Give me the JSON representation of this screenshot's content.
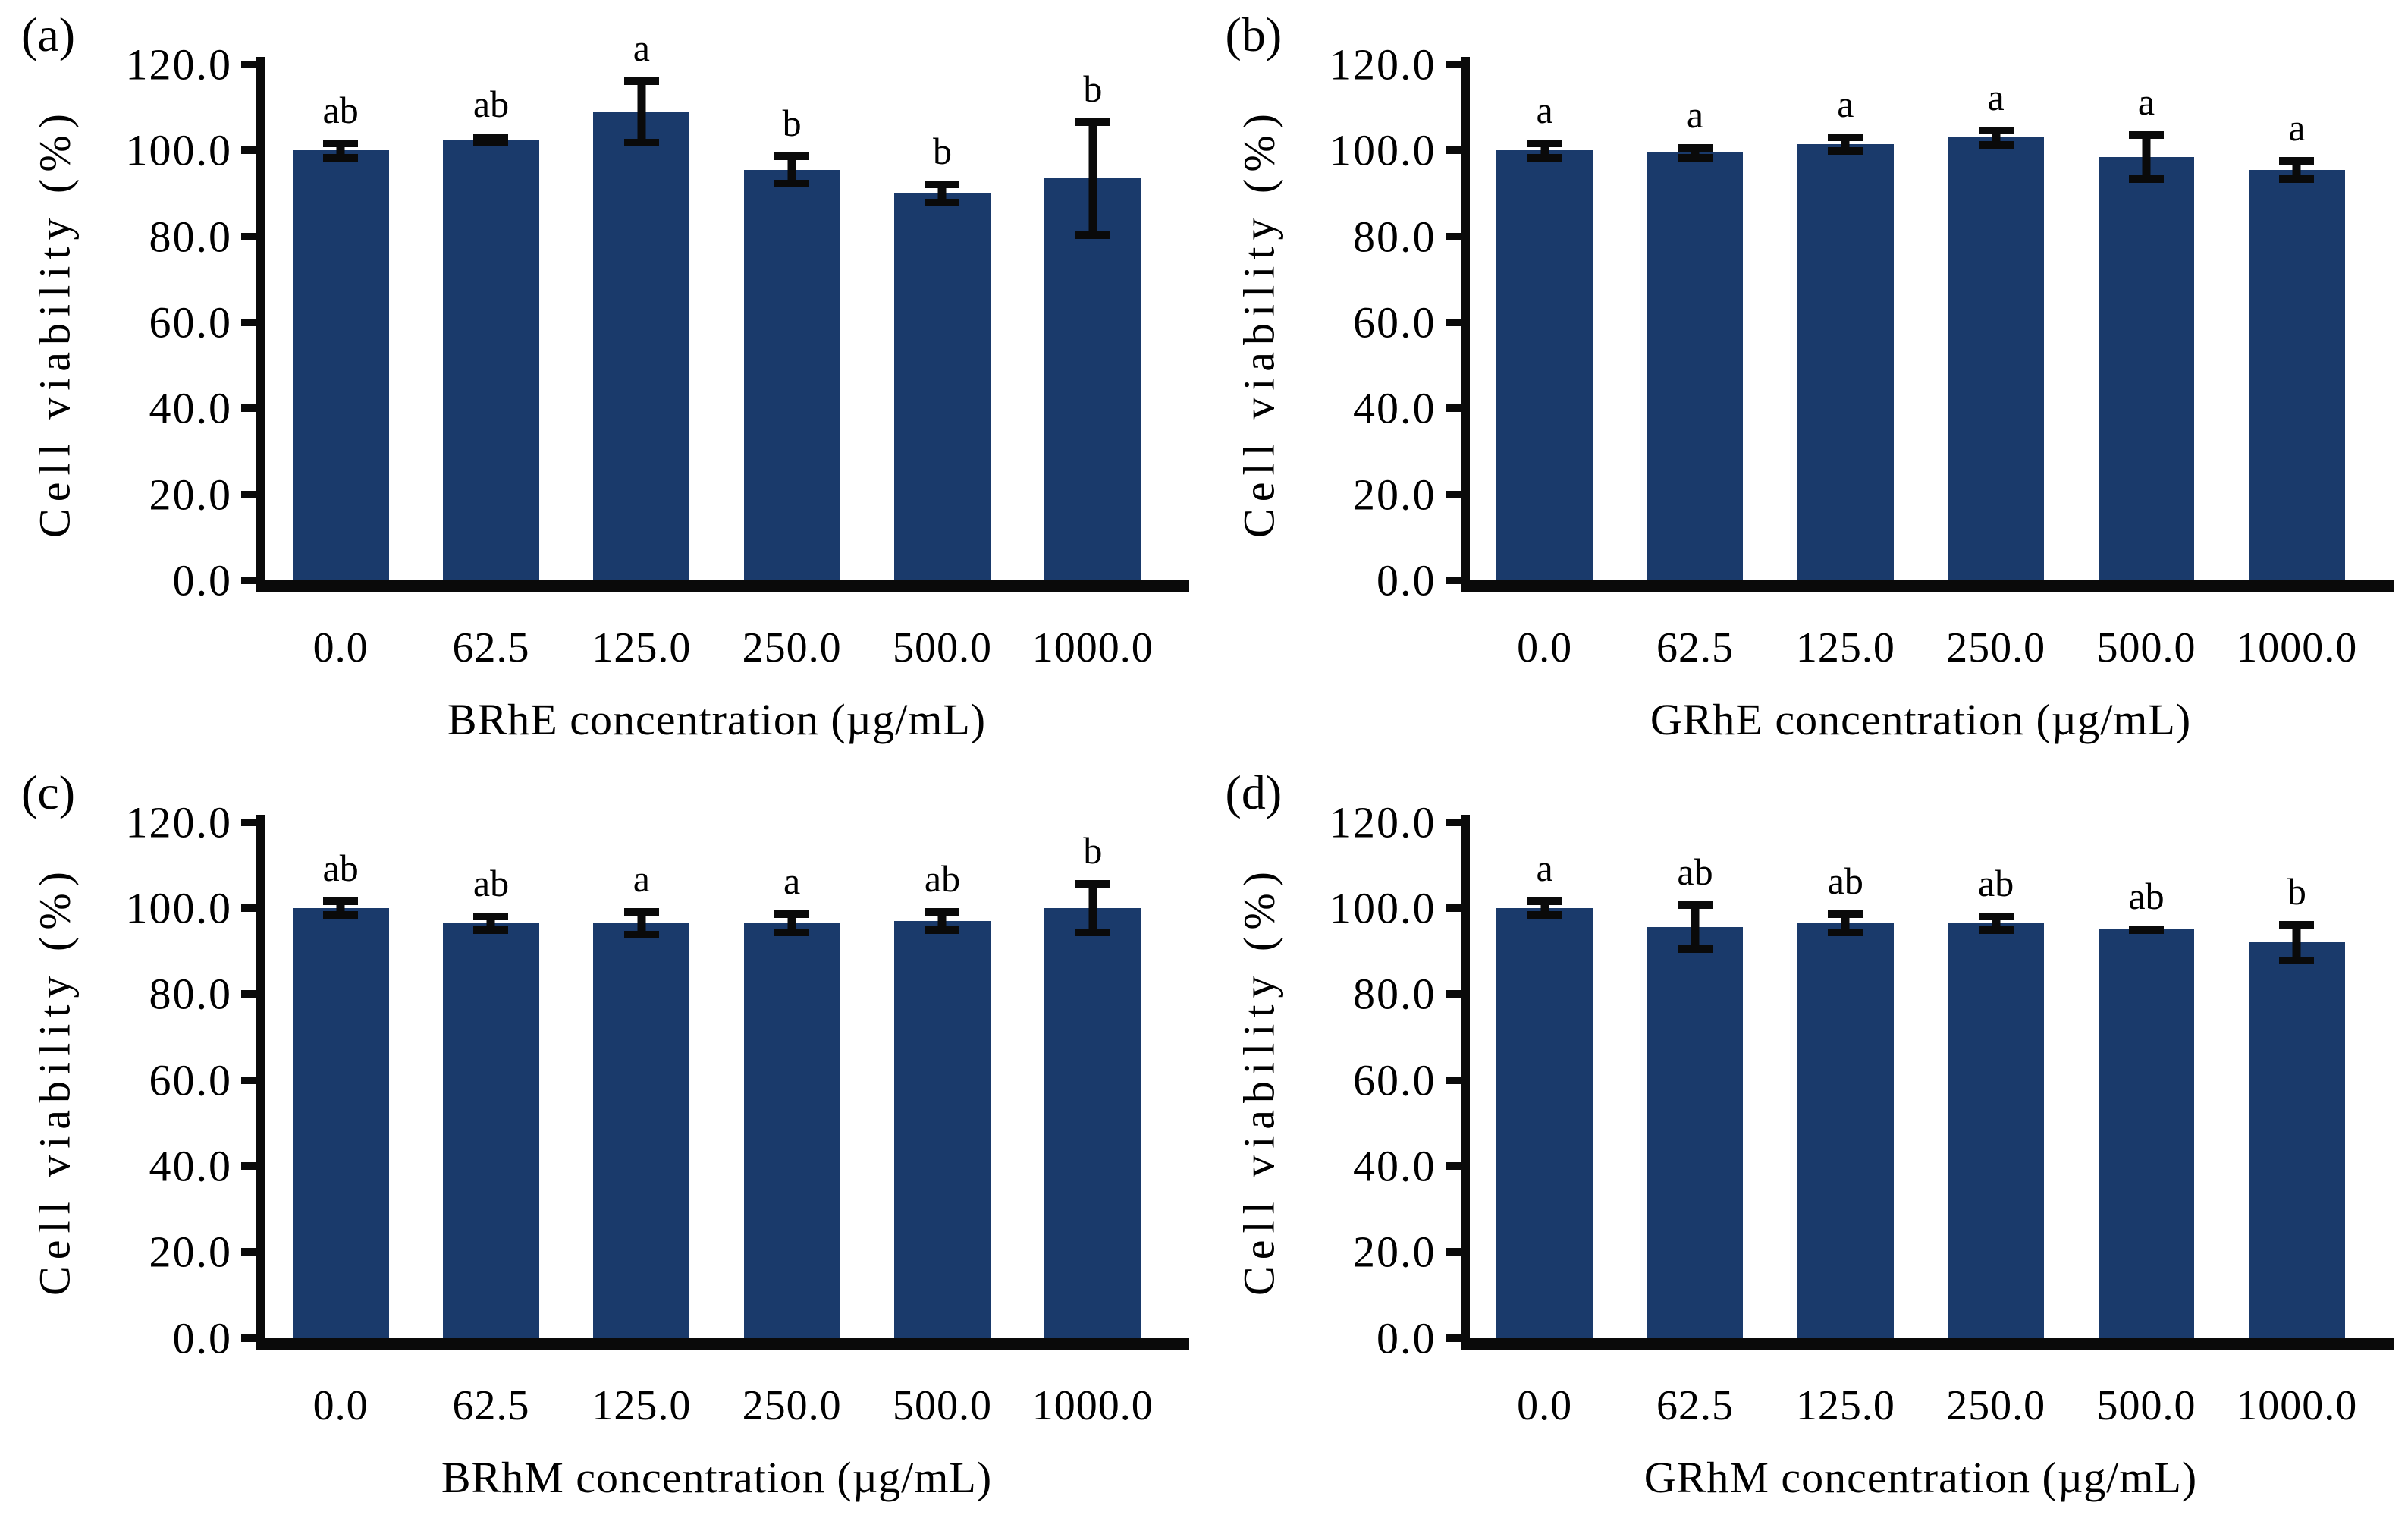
{
  "figure": {
    "bar_color": "#1a3a6b",
    "axis_color": "#0a0a0a",
    "background": "#ffffff",
    "ytick_labels": [
      "0.0",
      "20.0",
      "40.0",
      "60.0",
      "80.0",
      "100.0",
      "120.0"
    ]
  },
  "chart_data": [
    {
      "type": "bar",
      "panel": "(a)",
      "title": "",
      "xlabel": "BRhE concentration (µg/mL)",
      "ylabel": "Cell viability (%)",
      "categories": [
        "0.0",
        "62.5",
        "125.0",
        "250.0",
        "500.0",
        "1000.0"
      ],
      "values": [
        100.0,
        102.5,
        109.0,
        95.5,
        90.0,
        93.5
      ],
      "errors": [
        2.5,
        1.5,
        8.0,
        4.0,
        3.0,
        14.0
      ],
      "sig_labels": [
        "ab",
        "ab",
        "a",
        "b",
        "b",
        "b"
      ],
      "ylim": [
        0,
        120
      ],
      "grid": "off",
      "legend": "none"
    },
    {
      "type": "bar",
      "panel": "(b)",
      "title": "",
      "xlabel": "GRhE concentration (µg/mL)",
      "ylabel": "Cell viability (%)",
      "categories": [
        "0.0",
        "62.5",
        "125.0",
        "250.0",
        "500.0",
        "1000.0"
      ],
      "values": [
        100.0,
        99.5,
        101.5,
        103.0,
        98.5,
        95.5
      ],
      "errors": [
        2.5,
        2.0,
        2.5,
        2.5,
        6.0,
        3.0
      ],
      "sig_labels": [
        "a",
        "a",
        "a",
        "a",
        "a",
        "a"
      ],
      "ylim": [
        0,
        120
      ],
      "grid": "off",
      "legend": "none"
    },
    {
      "type": "bar",
      "panel": "(c)",
      "title": "",
      "xlabel": "BRhM concentration (µg/mL)",
      "ylabel": "Cell viability (%)",
      "categories": [
        "0.0",
        "62.5",
        "125.0",
        "250.0",
        "500.0",
        "1000.0"
      ],
      "values": [
        100.0,
        96.5,
        96.5,
        96.5,
        97.0,
        100.0
      ],
      "errors": [
        2.5,
        2.5,
        3.5,
        3.0,
        3.0,
        6.5
      ],
      "sig_labels": [
        "ab",
        "ab",
        "a",
        "a",
        "ab",
        "b"
      ],
      "ylim": [
        0,
        120
      ],
      "grid": "off",
      "legend": "none"
    },
    {
      "type": "bar",
      "panel": "(d)",
      "title": "",
      "xlabel": "GRhM concentration (µg/mL)",
      "ylabel": "Cell viability (%)",
      "categories": [
        "0.0",
        "62.5",
        "125.0",
        "250.0",
        "500.0",
        "1000.0"
      ],
      "values": [
        100.0,
        95.5,
        96.5,
        96.5,
        95.0,
        92.0
      ],
      "errors": [
        2.5,
        6.0,
        3.0,
        2.5,
        1.0,
        5.0
      ],
      "sig_labels": [
        "a",
        "ab",
        "ab",
        "ab",
        "ab",
        "b"
      ],
      "ylim": [
        0,
        120
      ],
      "grid": "off",
      "legend": "none"
    }
  ]
}
